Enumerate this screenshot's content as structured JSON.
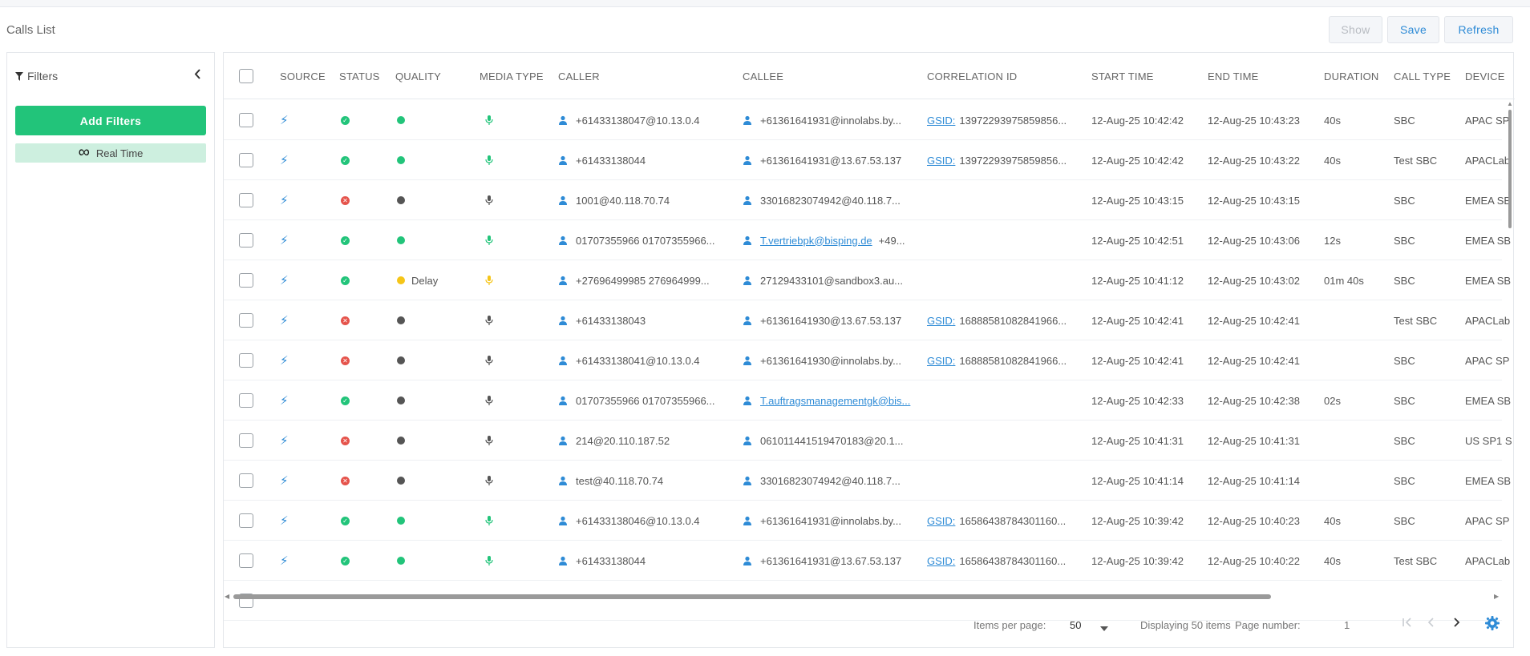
{
  "page": {
    "title": "Calls List"
  },
  "toolbar": {
    "show_label": "Show",
    "save_label": "Save",
    "refresh_label": "Refresh"
  },
  "filters": {
    "title": "Filters",
    "add_label": "Add Filters",
    "realtime_label": "Real Time",
    "icons": {
      "filter": "filter-icon",
      "collapse": "chevron-left-icon",
      "realtime": "infinity-icon"
    }
  },
  "grid": {
    "columns": [
      "SOURCE",
      "STATUS",
      "QUALITY",
      "MEDIA TYPE",
      "CALLER",
      "CALLEE",
      "CORRELATION ID",
      "START TIME",
      "END TIME",
      "DURATION",
      "CALL TYPE",
      "DEVICE"
    ],
    "rows": [
      {
        "status": "ok",
        "quality": "good",
        "quality_text": "",
        "media": "green",
        "caller": "+61433138047@10.13.0.4",
        "callee": "+61361641931@innolabs.by...",
        "callee_link": false,
        "callee_extra": "",
        "gsid": "GSID:",
        "corr": "13972293975859856...",
        "start": "12-Aug-25 10:42:42",
        "end": "12-Aug-25 10:43:23",
        "duration": "40s",
        "call_type": "SBC",
        "device": "APAC SP"
      },
      {
        "status": "ok",
        "quality": "good",
        "quality_text": "",
        "media": "green",
        "caller": "+61433138044",
        "callee": "+61361641931@13.67.53.137",
        "callee_link": false,
        "callee_extra": "",
        "gsid": "GSID:",
        "corr": "13972293975859856...",
        "start": "12-Aug-25 10:42:42",
        "end": "12-Aug-25 10:43:22",
        "duration": "40s",
        "call_type": "Test SBC",
        "device": "APACLab"
      },
      {
        "status": "err",
        "quality": "none",
        "quality_text": "",
        "media": "gray",
        "caller": "1001@40.118.70.74",
        "callee": "33016823074942@40.118.7...",
        "callee_link": false,
        "callee_extra": "",
        "gsid": "",
        "corr": "",
        "start": "12-Aug-25 10:43:15",
        "end": "12-Aug-25 10:43:15",
        "duration": "",
        "call_type": "SBC",
        "device": "EMEA SB"
      },
      {
        "status": "ok",
        "quality": "good",
        "quality_text": "",
        "media": "green",
        "caller": "01707355966 01707355966...",
        "callee": "T.vertriebpk@bisping.de",
        "callee_link": true,
        "callee_extra": "+49...",
        "gsid": "",
        "corr": "",
        "start": "12-Aug-25 10:42:51",
        "end": "12-Aug-25 10:43:06",
        "duration": "12s",
        "call_type": "SBC",
        "device": "EMEA SB"
      },
      {
        "status": "ok",
        "quality": "delay",
        "quality_text": "Delay",
        "media": "yellow",
        "caller": "+27696499985 276964999...",
        "callee": "27129433101@sandbox3.au...",
        "callee_link": false,
        "callee_extra": "",
        "gsid": "",
        "corr": "",
        "start": "12-Aug-25 10:41:12",
        "end": "12-Aug-25 10:43:02",
        "duration": "01m 40s",
        "call_type": "SBC",
        "device": "EMEA SB"
      },
      {
        "status": "err",
        "quality": "none",
        "quality_text": "",
        "media": "gray",
        "caller": "+61433138043",
        "callee": "+61361641930@13.67.53.137",
        "callee_link": false,
        "callee_extra": "",
        "gsid": "GSID:",
        "corr": "16888581082841966...",
        "start": "12-Aug-25 10:42:41",
        "end": "12-Aug-25 10:42:41",
        "duration": "",
        "call_type": "Test SBC",
        "device": "APACLab"
      },
      {
        "status": "err",
        "quality": "none",
        "quality_text": "",
        "media": "gray",
        "caller": "+61433138041@10.13.0.4",
        "callee": "+61361641930@innolabs.by...",
        "callee_link": false,
        "callee_extra": "",
        "gsid": "GSID:",
        "corr": "16888581082841966...",
        "start": "12-Aug-25 10:42:41",
        "end": "12-Aug-25 10:42:41",
        "duration": "",
        "call_type": "SBC",
        "device": "APAC SP"
      },
      {
        "status": "ok",
        "quality": "none",
        "quality_text": "",
        "media": "gray",
        "caller": "01707355966 01707355966...",
        "callee": "T.auftragsmanagementgk@bis...",
        "callee_link": true,
        "callee_extra": "",
        "gsid": "",
        "corr": "",
        "start": "12-Aug-25 10:42:33",
        "end": "12-Aug-25 10:42:38",
        "duration": "02s",
        "call_type": "SBC",
        "device": "EMEA SB"
      },
      {
        "status": "err",
        "quality": "none",
        "quality_text": "",
        "media": "gray",
        "caller": "214@20.110.187.52",
        "callee": "061011441519470183@20.1...",
        "callee_link": false,
        "callee_extra": "",
        "gsid": "",
        "corr": "",
        "start": "12-Aug-25 10:41:31",
        "end": "12-Aug-25 10:41:31",
        "duration": "",
        "call_type": "SBC",
        "device": "US SP1 S"
      },
      {
        "status": "err",
        "quality": "none",
        "quality_text": "",
        "media": "gray",
        "caller": "test@40.118.70.74",
        "callee": "33016823074942@40.118.7...",
        "callee_link": false,
        "callee_extra": "",
        "gsid": "",
        "corr": "",
        "start": "12-Aug-25 10:41:14",
        "end": "12-Aug-25 10:41:14",
        "duration": "",
        "call_type": "SBC",
        "device": "EMEA SB"
      },
      {
        "status": "ok",
        "quality": "good",
        "quality_text": "",
        "media": "green",
        "caller": "+61433138046@10.13.0.4",
        "callee": "+61361641931@innolabs.by...",
        "callee_link": false,
        "callee_extra": "",
        "gsid": "GSID:",
        "corr": "16586438784301160...",
        "start": "12-Aug-25 10:39:42",
        "end": "12-Aug-25 10:40:23",
        "duration": "40s",
        "call_type": "SBC",
        "device": "APAC SP"
      },
      {
        "status": "ok",
        "quality": "good",
        "quality_text": "",
        "media": "green",
        "caller": "+61433138044",
        "callee": "+61361641931@13.67.53.137",
        "callee_link": false,
        "callee_extra": "",
        "gsid": "GSID:",
        "corr": "16586438784301160...",
        "start": "12-Aug-25 10:39:42",
        "end": "12-Aug-25 10:40:22",
        "duration": "40s",
        "call_type": "Test SBC",
        "device": "APACLab"
      }
    ],
    "icons": {
      "source": "lightning-icon",
      "status_ok": "check-circle-icon",
      "status_err": "error-circle-icon",
      "media": "microphone-icon",
      "person": "person-icon"
    },
    "colors": {
      "accent": "#2e8bd6",
      "ok": "#22c47a",
      "error": "#e5534b",
      "delay": "#f5c518",
      "neutral": "#555555"
    }
  },
  "footer": {
    "items_per_page_label": "Items per page:",
    "items_per_page_value": "50",
    "displaying_label": "Displaying 50 items",
    "page_number_label": "Page number:",
    "page_number_value": "1",
    "icons": {
      "first": "first-page-icon",
      "prev": "prev-page-icon",
      "next": "next-page-icon",
      "settings": "gear-icon"
    }
  }
}
